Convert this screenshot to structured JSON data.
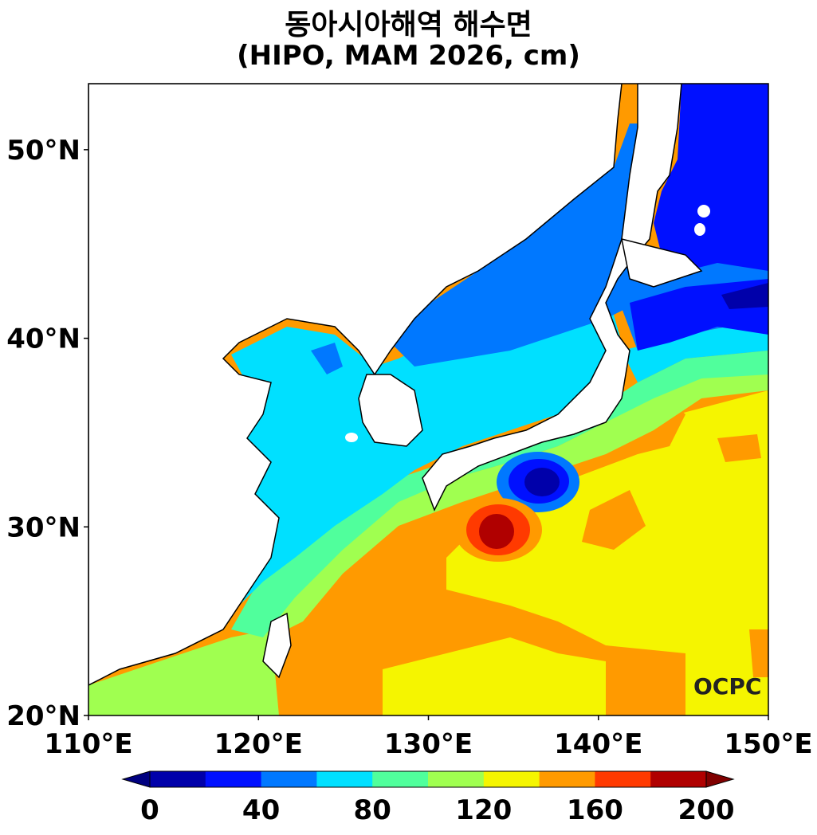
{
  "title": "동아시아해역 해수면",
  "subtitle": "(HIPO, MAM 2026, cm)",
  "logo": "OCPC",
  "map": {
    "lon_range": [
      110,
      150
    ],
    "lat_range": [
      20,
      53.5
    ],
    "x_ticks": [
      "110°E",
      "120°E",
      "130°E",
      "140°E",
      "150°E"
    ],
    "y_ticks": [
      "20°N",
      "30°N",
      "40°N",
      "50°N"
    ]
  },
  "colorbar": {
    "levels": [
      0,
      20,
      40,
      60,
      80,
      100,
      120,
      140,
      160,
      180,
      200
    ],
    "labels": [
      "0",
      "40",
      "80",
      "120",
      "160",
      "200"
    ],
    "colors": [
      "#0000aa",
      "#0010ff",
      "#0078ff",
      "#00e0ff",
      "#50ff9c",
      "#a0ff50",
      "#f5f500",
      "#ff9a00",
      "#ff3a00",
      "#b00000"
    ],
    "under_color": "#000080",
    "over_color": "#800000"
  }
}
